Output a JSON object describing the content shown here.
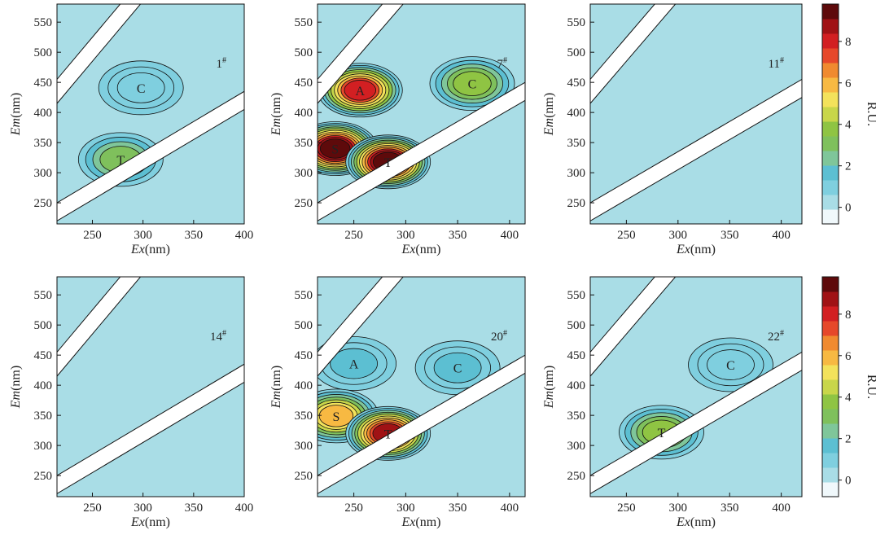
{
  "chart_data": [
    {
      "type": "heatmap",
      "sample_label": "1#",
      "xlabel": "Ex(nm)",
      "ylabel": "Em(nm)",
      "xlim": [
        215,
        400
      ],
      "ylim": [
        215,
        580
      ],
      "xticks": [
        "250",
        "300",
        "350",
        "400"
      ],
      "yticks": [
        "250",
        "300",
        "350",
        "400",
        "450",
        "500",
        "550"
      ],
      "peaks": [
        {
          "name": "C",
          "ex": 298,
          "em": 441,
          "intensity": 1.2
        },
        {
          "name": "T",
          "ex": 278,
          "em": 322,
          "intensity": 3.0
        }
      ]
    },
    {
      "type": "heatmap",
      "sample_label": "7#",
      "xlabel": "Ex(nm)",
      "ylabel": "Em(nm)",
      "xlim": [
        215,
        415
      ],
      "ylim": [
        215,
        580
      ],
      "xticks": [
        "250",
        "300",
        "350",
        "400"
      ],
      "yticks": [
        "250",
        "300",
        "350",
        "400",
        "450",
        "500",
        "550"
      ],
      "peaks": [
        {
          "name": "A",
          "ex": 256,
          "em": 437,
          "intensity": 8.0
        },
        {
          "name": "C",
          "ex": 364,
          "em": 448,
          "intensity": 3.5
        },
        {
          "name": "S",
          "ex": 232,
          "em": 340,
          "intensity": 9.5
        },
        {
          "name": "T",
          "ex": 283,
          "em": 318,
          "intensity": 9.5
        }
      ]
    },
    {
      "type": "heatmap",
      "sample_label": "11#",
      "xlabel": "Ex(nm)",
      "ylabel": "Em(nm)",
      "xlim": [
        215,
        420
      ],
      "ylim": [
        215,
        580
      ],
      "xticks": [
        "250",
        "300",
        "350",
        "400"
      ],
      "yticks": [
        "250",
        "300",
        "350",
        "400",
        "450",
        "500",
        "550"
      ],
      "peaks": []
    },
    {
      "type": "heatmap",
      "sample_label": "14#",
      "xlabel": "Ex(nm)",
      "ylabel": "Em(nm)",
      "xlim": [
        215,
        400
      ],
      "ylim": [
        215,
        580
      ],
      "xticks": [
        "250",
        "300",
        "350",
        "400"
      ],
      "yticks": [
        "250",
        "300",
        "350",
        "400",
        "450",
        "500",
        "550"
      ],
      "peaks": []
    },
    {
      "type": "heatmap",
      "sample_label": "20#",
      "xlabel": "Ex(nm)",
      "ylabel": "Em(nm)",
      "xlim": [
        215,
        415
      ],
      "ylim": [
        215,
        580
      ],
      "xticks": [
        "250",
        "300",
        "350",
        "400"
      ],
      "yticks": [
        "250",
        "300",
        "350",
        "400",
        "450",
        "500",
        "550"
      ],
      "peaks": [
        {
          "name": "A",
          "ex": 250,
          "em": 436,
          "intensity": 1.5
        },
        {
          "name": "C",
          "ex": 350,
          "em": 429,
          "intensity": 1.5
        },
        {
          "name": "S",
          "ex": 233,
          "em": 349,
          "intensity": 6.0
        },
        {
          "name": "T",
          "ex": 283,
          "em": 320,
          "intensity": 8.5
        }
      ]
    },
    {
      "type": "heatmap",
      "sample_label": "22#",
      "xlabel": "Ex(nm)",
      "ylabel": "Em(nm)",
      "xlim": [
        215,
        420
      ],
      "ylim": [
        215,
        580
      ],
      "xticks": [
        "250",
        "300",
        "350",
        "400"
      ],
      "yticks": [
        "250",
        "300",
        "350",
        "400",
        "450",
        "500",
        "550"
      ],
      "peaks": [
        {
          "name": "C",
          "ex": 351,
          "em": 434,
          "intensity": 1.2
        },
        {
          "name": "T",
          "ex": 284,
          "em": 322,
          "intensity": 4.0
        }
      ]
    }
  ],
  "colorbar": {
    "label": "R.U.",
    "ticks": [
      "0",
      "2",
      "4",
      "6",
      "8"
    ],
    "range": [
      -0.8,
      9.8
    ],
    "colors": [
      "#f0f8fb",
      "#a9dde6",
      "#7fcfdf",
      "#5cbfd2",
      "#7fc69a",
      "#7fc05c",
      "#8fc443",
      "#c8d64a",
      "#f3e25b",
      "#f7b942",
      "#f08a2f",
      "#e6482a",
      "#d21f22",
      "#a01215",
      "#5e0a0b"
    ]
  }
}
